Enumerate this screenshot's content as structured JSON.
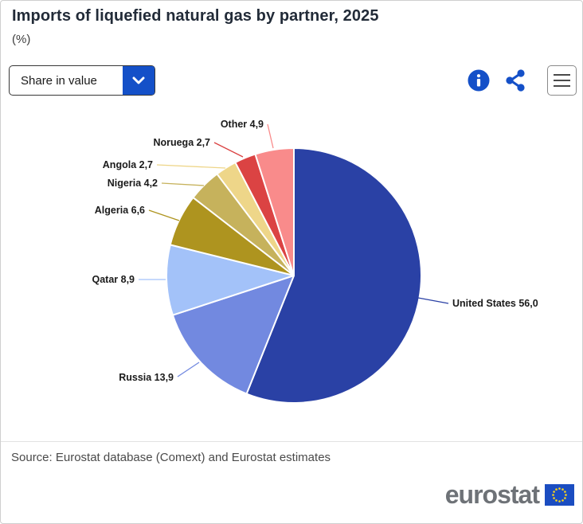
{
  "header": {
    "title": "Imports of liquefied natural gas by partner, 2025",
    "unit": "(%)"
  },
  "controls": {
    "dropdown": {
      "selected_option": "Share in value",
      "chevron_icon": "chevron-down"
    },
    "info_icon": "info-circle",
    "share_icon": "share-nodes",
    "menu_icon": "hamburger-menu"
  },
  "chart_data": {
    "type": "pie",
    "title": "Imports of liquefied natural gas by partner, 2025",
    "unit_label": "(%)",
    "decimal_style": "comma",
    "start_angle_deg": 0,
    "direction": "clockwise",
    "legend": "outside-labels-with-leader-lines",
    "slices": [
      {
        "label": "United States",
        "value": 56.0,
        "display": "United States 56,0",
        "color": "#2A41A5"
      },
      {
        "label": "Russia",
        "value": 13.9,
        "display": "Russia 13,9",
        "color": "#7289E0"
      },
      {
        "label": "Qatar",
        "value": 8.9,
        "display": "Qatar 8,9",
        "color": "#A3C2F9"
      },
      {
        "label": "Algeria",
        "value": 6.6,
        "display": "Algeria 6,6",
        "color": "#AE941F"
      },
      {
        "label": "Nigeria",
        "value": 4.2,
        "display": "Nigeria 4,2",
        "color": "#C6B25C"
      },
      {
        "label": "Angola",
        "value": 2.7,
        "display": "Angola 2,7",
        "color": "#EED689"
      },
      {
        "label": "Noruega",
        "value": 2.7,
        "display": "Noruega 2,7",
        "color": "#DB4343"
      },
      {
        "label": "Other",
        "value": 4.9,
        "display": "Other 4,9",
        "color": "#F98B8B"
      }
    ]
  },
  "footer": {
    "source": "Source: Eurostat database (Comext) and Eurostat estimates",
    "logo_text": "eurostat"
  },
  "colors": {
    "accent_blue": "#1450C8",
    "title_text": "#222B38",
    "label_text": "#1A1A1A",
    "source_text": "#4A4A4A",
    "logo_gray": "#6E7277",
    "flag_blue": "#1B4DC1",
    "flag_star_yellow": "#FFD617",
    "slice_stroke": "#FFFFFF"
  }
}
